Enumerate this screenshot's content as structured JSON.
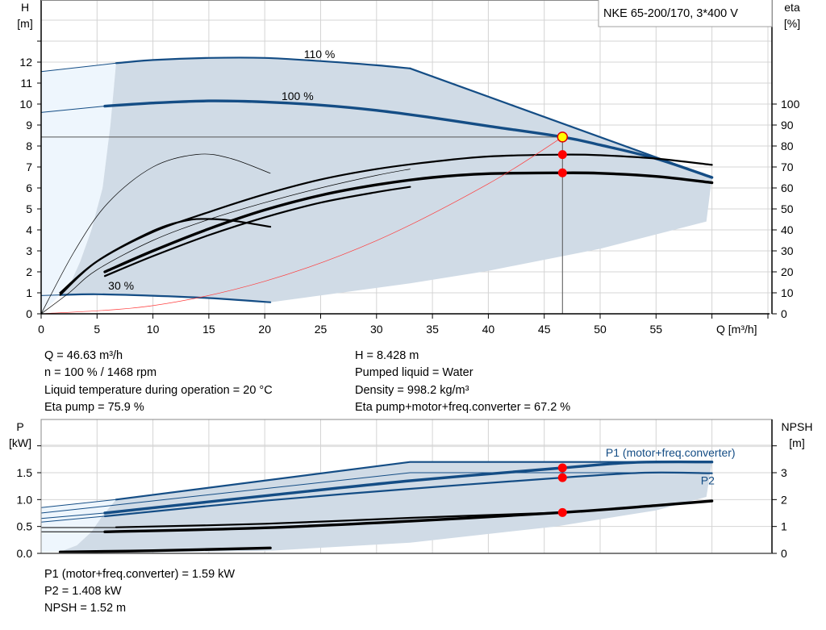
{
  "title_box": "NKE 65-200/170, 3*400 V",
  "colors": {
    "shade": "#d0dbe6",
    "shade_light": "#eef6fd",
    "curve_blue": "#144d85",
    "curve_black": "#000000",
    "system_curve": "#ff3b3b",
    "point_red": "#ff0000",
    "point_yellow": "#ffff00",
    "grid": "#d4d4d4"
  },
  "info_left": [
    "Q = 46.63 m³/h",
    "n = 100 % / 1468 rpm",
    "Liquid temperature during operation = 20 °C",
    "Eta pump = 75.9 %"
  ],
  "info_right": [
    "H = 8.428 m",
    "Pumped liquid = Water",
    "Density = 998.2 kg/m³",
    "Eta pump+motor+freq.converter = 67.2 %"
  ],
  "info_bottom": [
    "P1 (motor+freq.converter) = 1.59 kW",
    "P2 = 1.408 kW",
    "NPSH = 1.52 m"
  ],
  "chart_data": [
    {
      "type": "line",
      "xlabel": "Q [m³/h]",
      "ylabel_left": [
        "H",
        "[m]"
      ],
      "ylabel_right": [
        "eta",
        "[%]"
      ],
      "xlim": [
        0,
        60
      ],
      "xticks": [
        0,
        5,
        10,
        15,
        20,
        25,
        30,
        35,
        40,
        45,
        50,
        55
      ],
      "ylim_left": [
        0,
        14
      ],
      "yticks_left": [
        0,
        1,
        2,
        3,
        4,
        5,
        6,
        7,
        8,
        9,
        10,
        11,
        12
      ],
      "ylim_right": [
        0,
        140
      ],
      "yticks_right": [
        0,
        10,
        20,
        30,
        40,
        50,
        60,
        70,
        80,
        90,
        100
      ],
      "grid": true,
      "duty_point": {
        "Q": 46.63,
        "H": 8.428,
        "eta_pump": 75.9,
        "eta_total": 67.2
      },
      "curve_labels": [
        {
          "text": "110 %",
          "Q": 23.5,
          "H": 12.2
        },
        {
          "text": "100 %",
          "Q": 21.5,
          "H": 10.2
        },
        {
          "text": "30 %",
          "Q": 6,
          "H": 1.15
        }
      ],
      "series": [
        {
          "name": "110 %",
          "axis": "H",
          "color": "#144d85",
          "weight": "thin",
          "values": [
            [
              0,
              11.55
            ],
            [
              6.7,
              11.95
            ]
          ]
        },
        {
          "name": "110 %",
          "axis": "H",
          "color": "#144d85",
          "weight": "thick",
          "values": [
            [
              6.7,
              11.95
            ],
            [
              10,
              12.1
            ],
            [
              15,
              12.2
            ],
            [
              20,
              12.2
            ],
            [
              25,
              12.05
            ],
            [
              30,
              11.85
            ],
            [
              33,
              11.7
            ]
          ]
        },
        {
          "axis": "H",
          "color": "#144d85",
          "weight": "thick",
          "straight": true,
          "values": [
            [
              33,
              11.7
            ],
            [
              60,
              6.5
            ]
          ]
        },
        {
          "name": "100 %",
          "axis": "H",
          "color": "#144d85",
          "weight": "thin",
          "values": [
            [
              0,
              9.6
            ],
            [
              5.7,
              9.9
            ]
          ]
        },
        {
          "name": "100 %",
          "axis": "H",
          "color": "#144d85",
          "weight": "heavy",
          "values": [
            [
              5.7,
              9.9
            ],
            [
              10,
              10.05
            ],
            [
              15,
              10.15
            ],
            [
              20,
              10.1
            ],
            [
              25,
              9.95
            ],
            [
              30,
              9.7
            ],
            [
              35,
              9.35
            ],
            [
              40,
              8.95
            ],
            [
              46.63,
              8.43
            ],
            [
              50,
              8.05
            ],
            [
              55,
              7.4
            ],
            [
              60,
              6.5
            ]
          ]
        },
        {
          "name": "30 %",
          "axis": "H",
          "color": "#144d85",
          "weight": "thin",
          "values": [
            [
              0,
              0.87
            ],
            [
              1.7,
              0.9
            ]
          ]
        },
        {
          "name": "30 %",
          "axis": "H",
          "color": "#144d85",
          "weight": "thick",
          "values": [
            [
              1.7,
              0.9
            ],
            [
              5,
              0.93
            ],
            [
              10,
              0.86
            ],
            [
              15,
              0.75
            ],
            [
              20.5,
              0.55
            ]
          ]
        },
        {
          "axis": "eta",
          "color": "#000000",
          "weight": "hair",
          "values": [
            [
              0,
              0
            ],
            [
              3,
              30
            ],
            [
              6,
              53
            ],
            [
              10,
              70
            ],
            [
              14,
              76
            ],
            [
              17,
              74
            ],
            [
              20.5,
              67
            ]
          ]
        },
        {
          "axis": "eta",
          "color": "#000000",
          "weight": "thick",
          "values": [
            [
              1.7,
              9
            ],
            [
              5,
              25
            ],
            [
              10,
              39.5
            ],
            [
              13,
              44.5
            ],
            [
              15,
              45.2
            ],
            [
              17,
              44.5
            ],
            [
              20.5,
              41.5
            ]
          ]
        },
        {
          "axis": "eta",
          "color": "#000000",
          "weight": "thick",
          "values": [
            [
              1.7,
              10
            ],
            [
              5,
              25
            ],
            [
              10,
              39
            ],
            [
              15,
              48.5
            ],
            [
              20,
              57
            ],
            [
              25,
              64
            ],
            [
              30,
              69
            ],
            [
              35,
              72.5
            ],
            [
              40,
              75
            ],
            [
              46.63,
              75.9
            ],
            [
              50,
              75.6
            ],
            [
              55,
              74
            ],
            [
              60,
              71
            ]
          ]
        },
        {
          "axis": "eta",
          "color": "#000000",
          "weight": "hair",
          "values": [
            [
              0,
              0
            ],
            [
              2.5,
              10
            ],
            [
              5,
              21
            ],
            [
              10,
              35
            ],
            [
              15,
              45
            ],
            [
              20,
              53
            ],
            [
              25,
              60
            ],
            [
              30,
              66
            ],
            [
              33,
              69
            ]
          ]
        },
        {
          "axis": "eta",
          "color": "#000000",
          "weight": "heavy",
          "values": [
            [
              5.7,
              20
            ],
            [
              10,
              30
            ],
            [
              15,
              40.5
            ],
            [
              20,
              49.5
            ],
            [
              25,
              56.5
            ],
            [
              30,
              61.5
            ],
            [
              35,
              65
            ],
            [
              40,
              66.8
            ],
            [
              46.63,
              67.2
            ],
            [
              50,
              67
            ],
            [
              55,
              65.5
            ],
            [
              60,
              62.5
            ]
          ]
        },
        {
          "axis": "eta",
          "color": "#000000",
          "weight": "thick",
          "values": [
            [
              5.7,
              18
            ],
            [
              10,
              27.5
            ],
            [
              15,
              37.5
            ],
            [
              20,
              46
            ],
            [
              25,
              53
            ],
            [
              30,
              58
            ],
            [
              33,
              60.5
            ]
          ]
        },
        {
          "axis": "H",
          "color": "#ff3b3b",
          "weight": "hair",
          "system": true,
          "values": [
            [
              0,
              0
            ],
            [
              10,
              0.388
            ],
            [
              20,
              1.55
            ],
            [
              30,
              3.49
            ],
            [
              40,
              6.2
            ],
            [
              46.63,
              8.428
            ]
          ]
        }
      ]
    },
    {
      "type": "line",
      "ylabel_left": [
        "P",
        "[kW]"
      ],
      "ylabel_right": [
        "NPSH",
        "[m]"
      ],
      "xlim": [
        0,
        60
      ],
      "ylim_left": [
        0,
        2.5
      ],
      "yticks_left": [
        "0.0",
        "0.5",
        "1.0",
        "1.5"
      ],
      "ylim_right": [
        0,
        5
      ],
      "yticks_right": [
        0,
        1,
        2,
        3
      ],
      "grid": true,
      "duty_point": {
        "Q": 46.63,
        "P1": 1.59,
        "P2": 1.408,
        "NPSH": 1.52
      },
      "curve_labels": [
        {
          "text": "P1 (motor+freq.converter)",
          "Q": 50.5,
          "P": 1.8
        },
        {
          "text": "P2",
          "Q": 59,
          "P": 1.28
        }
      ],
      "series": [
        {
          "axis": "P",
          "color": "#144d85",
          "weight": "thin",
          "values": [
            [
              0,
              0.85
            ],
            [
              6.7,
              1.0
            ]
          ]
        },
        {
          "axis": "P",
          "color": "#144d85",
          "weight": "thick",
          "straight": true,
          "values": [
            [
              6.7,
              1.0
            ],
            [
              33,
              1.7
            ],
            [
              60,
              1.7
            ]
          ]
        },
        {
          "axis": "P",
          "color": "#144d85",
          "weight": "thin",
          "straight": true,
          "values": [
            [
              0,
              0.75
            ],
            [
              6.7,
              0.9
            ],
            [
              33,
              1.5
            ],
            [
              60,
              1.5
            ]
          ]
        },
        {
          "name": "P1 (motor+freq.converter)",
          "axis": "P",
          "color": "#144d85",
          "weight": "thin",
          "values": [
            [
              0,
              0.65
            ],
            [
              5.7,
              0.75
            ]
          ]
        },
        {
          "name": "P1 (motor+freq.converter)",
          "axis": "P",
          "color": "#144d85",
          "weight": "heavy",
          "values": [
            [
              5.7,
              0.75
            ],
            [
              20,
              1.07
            ],
            [
              33,
              1.35
            ],
            [
              46.63,
              1.59
            ],
            [
              53,
              1.69
            ],
            [
              60,
              1.7
            ]
          ]
        },
        {
          "name": "P2",
          "axis": "P",
          "color": "#144d85",
          "weight": "thin",
          "values": [
            [
              0,
              0.58
            ],
            [
              5.7,
              0.69
            ]
          ]
        },
        {
          "name": "P2",
          "axis": "P",
          "color": "#144d85",
          "weight": "thick",
          "values": [
            [
              5.7,
              0.69
            ],
            [
              20,
              0.98
            ],
            [
              33,
              1.2
            ],
            [
              46.63,
              1.408
            ],
            [
              54,
              1.5
            ],
            [
              60,
              1.49
            ]
          ]
        },
        {
          "axis": "NPSH",
          "color": "#000000",
          "weight": "thin",
          "values": [
            [
              0,
              0.96
            ],
            [
              6.7,
              0.96
            ]
          ]
        },
        {
          "axis": "NPSH",
          "color": "#000000",
          "weight": "thick",
          "values": [
            [
              6.7,
              0.97
            ],
            [
              20,
              1.1
            ],
            [
              33,
              1.32
            ],
            [
              46.63,
              1.52
            ]
          ]
        },
        {
          "axis": "NPSH",
          "color": "#000000",
          "weight": "thin",
          "values": [
            [
              0,
              0.8
            ],
            [
              5.7,
              0.8
            ]
          ]
        },
        {
          "axis": "NPSH",
          "color": "#000000",
          "weight": "heavy",
          "values": [
            [
              5.7,
              0.8
            ],
            [
              20,
              0.95
            ],
            [
              33,
              1.2
            ],
            [
              46.63,
              1.52
            ],
            [
              55,
              1.78
            ],
            [
              60,
              1.95
            ]
          ]
        },
        {
          "axis": "NPSH",
          "color": "#000000",
          "weight": "heavy",
          "values": [
            [
              1.7,
              0.05
            ],
            [
              10,
              0.1
            ],
            [
              20.5,
              0.2
            ]
          ]
        }
      ]
    }
  ]
}
